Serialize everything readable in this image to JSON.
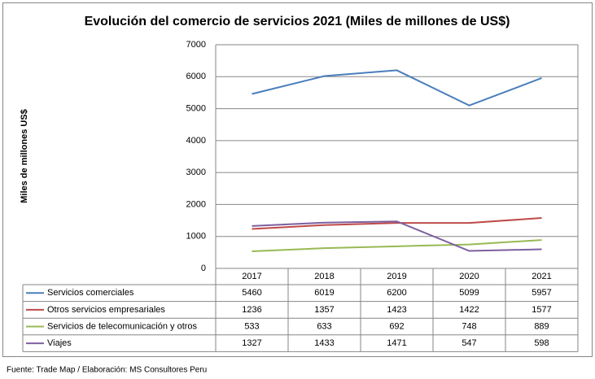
{
  "chart_data": {
    "type": "line",
    "title": "Evolución del comercio de servicios 2021 (Miles de millones de US$)",
    "y_label": "Miles de millones US$",
    "categories": [
      "2017",
      "2018",
      "2019",
      "2020",
      "2021"
    ],
    "series": [
      {
        "name": "Servicios comerciales",
        "color": "#4a7ebb",
        "values": [
          5460,
          6019,
          6200,
          5099,
          5957
        ]
      },
      {
        "name": "Otros servicios empresariales",
        "color": "#be4b48",
        "values": [
          1236,
          1357,
          1423,
          1422,
          1577
        ]
      },
      {
        "name": "Servicios de telecomunicación y otros",
        "color": "#98b954",
        "values": [
          533,
          633,
          692,
          748,
          889
        ]
      },
      {
        "name": "Viajes",
        "color": "#7d5fa0",
        "values": [
          1327,
          1433,
          1471,
          547,
          598
        ]
      }
    ],
    "ylim": [
      0,
      7000
    ],
    "yticks": [
      0,
      1000,
      2000,
      3000,
      4000,
      5000,
      6000,
      7000
    ],
    "grid": true,
    "source": "Fuente: Trade Map / Elaboración: MS Consultores Peru"
  }
}
